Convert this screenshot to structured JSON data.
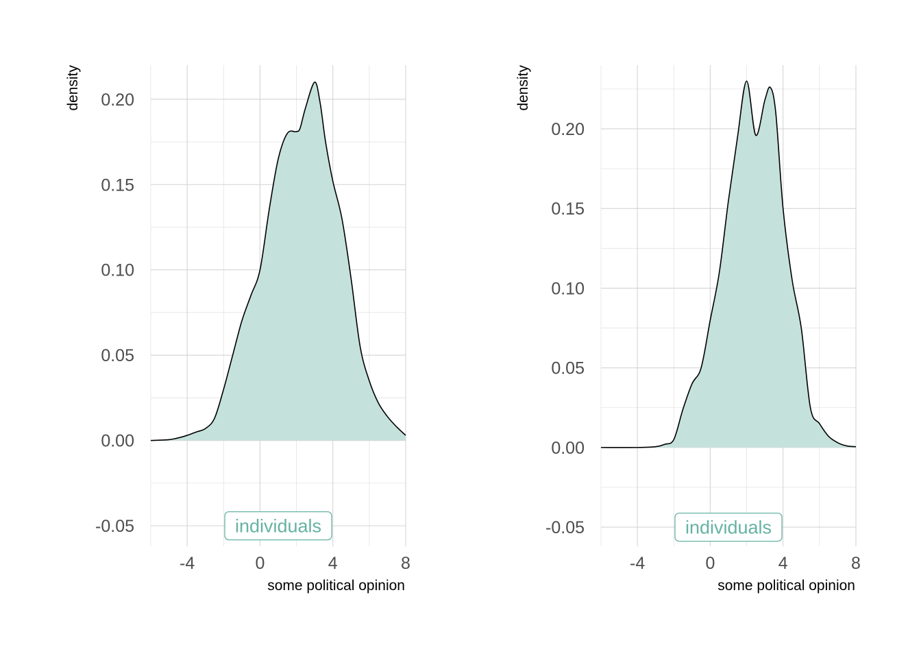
{
  "chart_data": [
    {
      "type": "area",
      "xlabel": "some political opinion",
      "ylabel": "density",
      "xlim": [
        -6,
        8
      ],
      "ylim": [
        -0.062,
        0.22
      ],
      "x_ticks": [
        -4,
        0,
        4,
        8
      ],
      "x_tick_labels": [
        "-4",
        "0",
        "4",
        "8"
      ],
      "y_ticks": [
        -0.05,
        0.0,
        0.05,
        0.1,
        0.15,
        0.2
      ],
      "y_tick_labels": [
        "-0.05",
        "0.00",
        "0.05",
        "0.10",
        "0.15",
        "0.20"
      ],
      "grid": true,
      "fill_color": "#c5e1dc",
      "line_color": "#000000",
      "annotation": {
        "text": "individuals",
        "x": 1,
        "y": -0.05,
        "color": "#66b2a3"
      },
      "x": [
        -6,
        -5,
        -4.5,
        -4,
        -3.5,
        -3,
        -2.5,
        -2,
        -1.5,
        -1,
        -0.5,
        0,
        0.5,
        1,
        1.5,
        2,
        2.2,
        2.5,
        3,
        3.3,
        3.6,
        4,
        4.5,
        5,
        5.5,
        6,
        6.5,
        7,
        7.5,
        8
      ],
      "y": [
        0.0,
        0.0005,
        0.0015,
        0.003,
        0.005,
        0.007,
        0.013,
        0.03,
        0.05,
        0.07,
        0.085,
        0.1,
        0.135,
        0.165,
        0.18,
        0.181,
        0.183,
        0.195,
        0.21,
        0.198,
        0.175,
        0.152,
        0.13,
        0.095,
        0.055,
        0.035,
        0.022,
        0.014,
        0.008,
        0.003
      ]
    },
    {
      "type": "area",
      "xlabel": "some political opinion",
      "ylabel": "density",
      "xlim": [
        -6,
        8
      ],
      "ylim": [
        -0.062,
        0.24
      ],
      "x_ticks": [
        -4,
        0,
        4,
        8
      ],
      "x_tick_labels": [
        "-4",
        "0",
        "4",
        "8"
      ],
      "y_ticks": [
        -0.05,
        0.0,
        0.05,
        0.1,
        0.15,
        0.2
      ],
      "y_tick_labels": [
        "-0.05",
        "0.00",
        "0.05",
        "0.10",
        "0.15",
        "0.20"
      ],
      "grid": true,
      "fill_color": "#c5e1dc",
      "line_color": "#000000",
      "annotation": {
        "text": "individuals",
        "x": 1,
        "y": -0.05,
        "color": "#66b2a3"
      },
      "x": [
        -6,
        -4,
        -3,
        -2.5,
        -2,
        -1.5,
        -1,
        -0.5,
        0,
        0.5,
        1,
        1.5,
        2,
        2.5,
        3,
        3.3,
        3.6,
        4,
        4.5,
        5,
        5.5,
        6,
        6.5,
        7,
        7.5,
        8
      ],
      "y": [
        0.0,
        0.0,
        0.0005,
        0.002,
        0.005,
        0.024,
        0.04,
        0.05,
        0.08,
        0.11,
        0.155,
        0.195,
        0.23,
        0.196,
        0.218,
        0.226,
        0.21,
        0.15,
        0.105,
        0.075,
        0.025,
        0.015,
        0.007,
        0.003,
        0.001,
        0.0005
      ]
    }
  ]
}
